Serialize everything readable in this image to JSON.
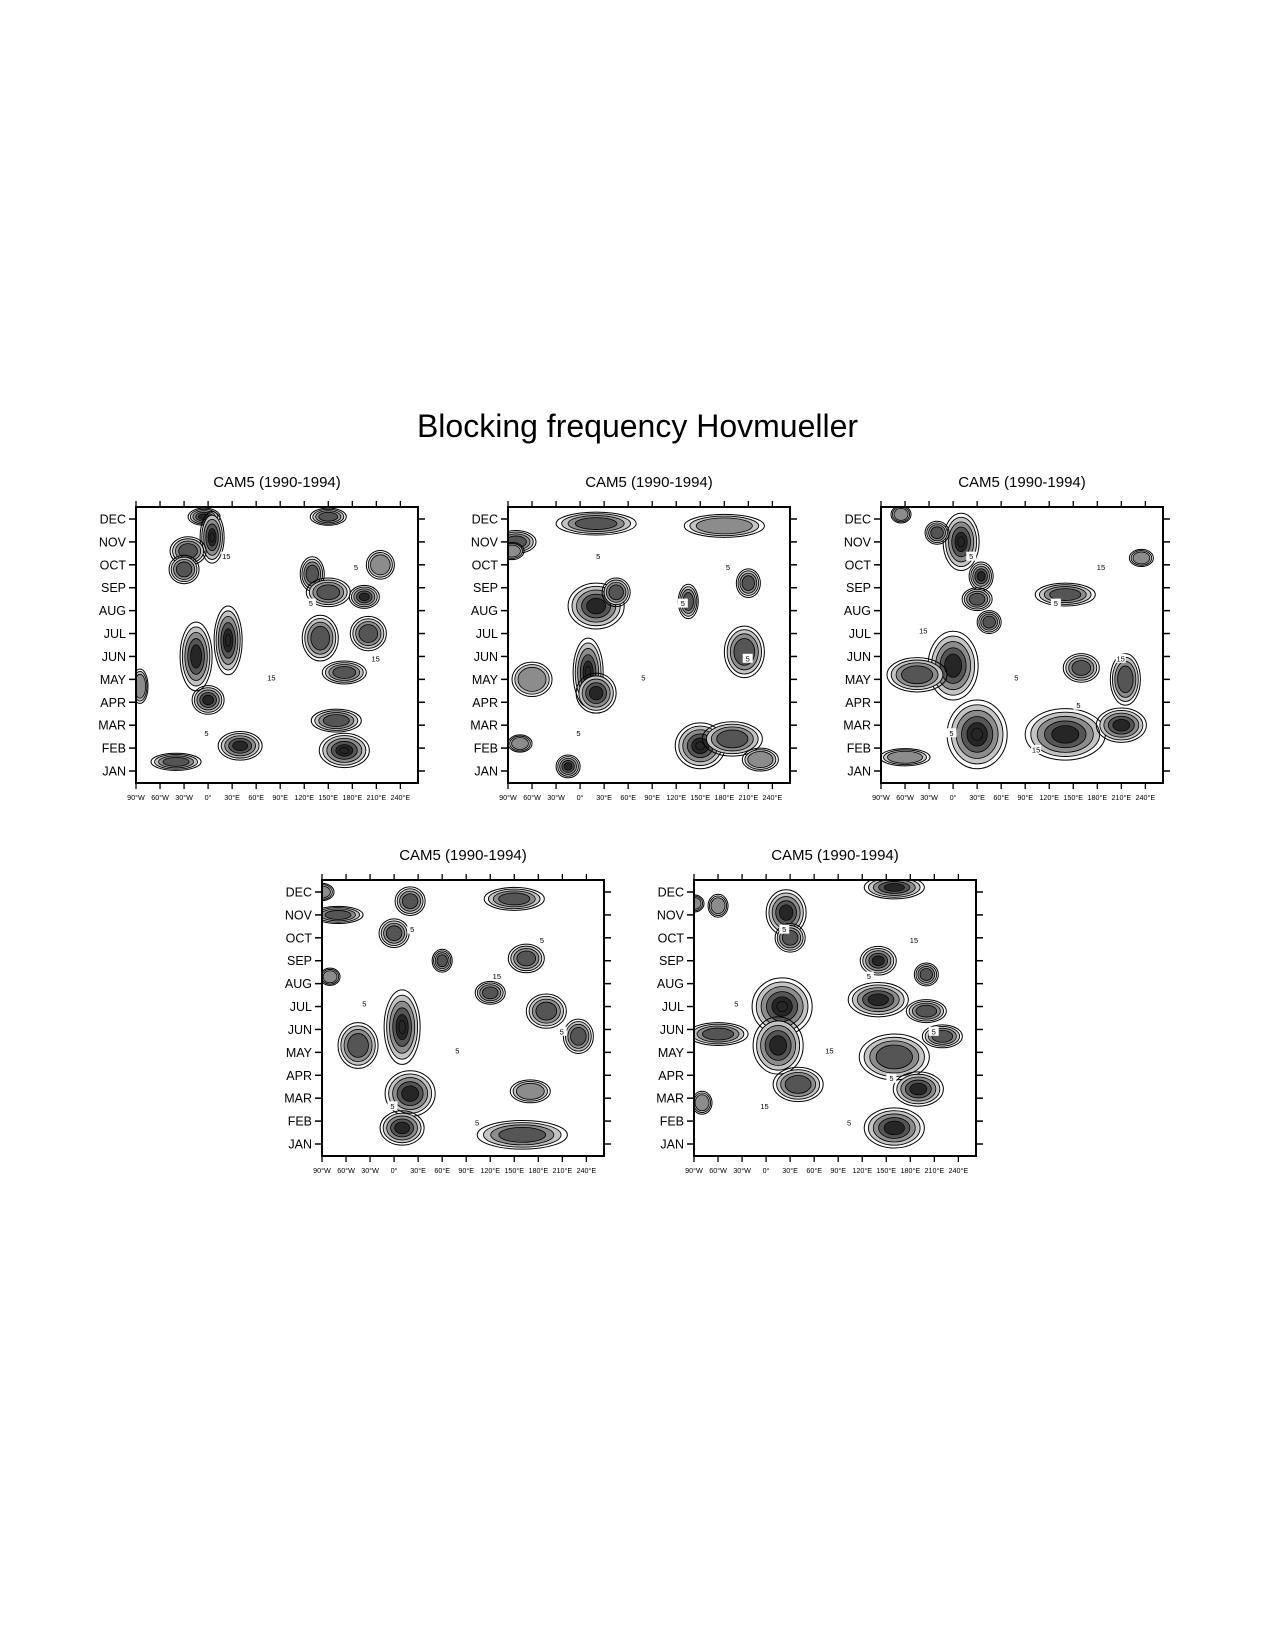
{
  "title": "Blocking frequency Hovmueller",
  "chart_data": [
    {
      "type": "heatmap",
      "title": "CAM5 (1990-1994)",
      "x_tick_labels": [
        "90°W",
        "60°W",
        "30°W",
        "0°",
        "30°E",
        "60°E",
        "90°E",
        "120°E",
        "150°E",
        "180°E",
        "210°E",
        "240°E"
      ],
      "y_tick_labels": [
        "JAN",
        "FEB",
        "MAR",
        "APR",
        "MAY",
        "JUN",
        "JUL",
        "AUG",
        "SEP",
        "OCT",
        "NOV",
        "DEC"
      ],
      "contour_labels": [
        "15",
        "5",
        "15",
        "5",
        "5",
        "15"
      ],
      "blobs": [
        {
          "x": -5,
          "y": 11.1,
          "rx": 16,
          "ry": 0.3,
          "v": 18
        },
        {
          "x": 5,
          "y": 10.2,
          "rx": 12,
          "ry": 0.9,
          "v": 22
        },
        {
          "x": -25,
          "y": 9.6,
          "rx": 18,
          "ry": 0.5,
          "v": 15
        },
        {
          "x": -30,
          "y": 8.8,
          "rx": 15,
          "ry": 0.5,
          "v": 14
        },
        {
          "x": 130,
          "y": 8.6,
          "rx": 12,
          "ry": 0.6,
          "v": 15
        },
        {
          "x": 195,
          "y": 7.6,
          "rx": 15,
          "ry": 0.4,
          "v": 18
        },
        {
          "x": 150,
          "y": 7.8,
          "rx": 22,
          "ry": 0.5,
          "v": 15
        },
        {
          "x": 25,
          "y": 5.7,
          "rx": 14,
          "ry": 1.2,
          "v": 22
        },
        {
          "x": -15,
          "y": 5.0,
          "rx": 16,
          "ry": 1.2,
          "v": 18
        },
        {
          "x": 140,
          "y": 5.8,
          "rx": 18,
          "ry": 0.8,
          "v": 16
        },
        {
          "x": 200,
          "y": 6.0,
          "rx": 18,
          "ry": 0.6,
          "v": 16
        },
        {
          "x": 170,
          "y": 4.3,
          "rx": 22,
          "ry": 0.4,
          "v": 14
        },
        {
          "x": 0,
          "y": 3.1,
          "rx": 16,
          "ry": 0.5,
          "v": 20
        },
        {
          "x": 160,
          "y": 2.2,
          "rx": 25,
          "ry": 0.4,
          "v": 14
        },
        {
          "x": 40,
          "y": 1.1,
          "rx": 22,
          "ry": 0.5,
          "v": 18
        },
        {
          "x": 170,
          "y": 0.9,
          "rx": 25,
          "ry": 0.6,
          "v": 22
        },
        {
          "x": -40,
          "y": 0.4,
          "rx": 25,
          "ry": 0.3,
          "v": 14
        },
        {
          "x": 150,
          "y": 11.1,
          "rx": 18,
          "ry": 0.3,
          "v": 14
        },
        {
          "x": 215,
          "y": 9.0,
          "rx": 14,
          "ry": 0.5,
          "v": 13
        },
        {
          "x": -85,
          "y": 3.7,
          "rx": 8,
          "ry": 0.6,
          "v": 12
        }
      ]
    },
    {
      "type": "heatmap",
      "title": "CAM5 (1990-1994)",
      "x_tick_labels": [
        "90°W",
        "60°W",
        "30°W",
        "0°",
        "30°E",
        "60°E",
        "90°E",
        "120°E",
        "150°E",
        "180°E",
        "210°E",
        "240°E"
      ],
      "y_tick_labels": [
        "JAN",
        "FEB",
        "MAR",
        "APR",
        "MAY",
        "JUN",
        "JUL",
        "AUG",
        "SEP",
        "OCT",
        "NOV",
        "DEC"
      ],
      "contour_labels": [
        "5",
        "5",
        "5",
        "5",
        "5",
        "5"
      ],
      "blobs": [
        {
          "x": 20,
          "y": 10.8,
          "rx": 40,
          "ry": 0.4,
          "v": 16
        },
        {
          "x": -80,
          "y": 10.0,
          "rx": 20,
          "ry": 0.4,
          "v": 14
        },
        {
          "x": -85,
          "y": 9.6,
          "rx": 12,
          "ry": 0.3,
          "v": 12
        },
        {
          "x": 180,
          "y": 10.7,
          "rx": 40,
          "ry": 0.4,
          "v": 12
        },
        {
          "x": 20,
          "y": 7.2,
          "rx": 28,
          "ry": 0.8,
          "v": 20
        },
        {
          "x": 45,
          "y": 7.8,
          "rx": 14,
          "ry": 0.5,
          "v": 14
        },
        {
          "x": 135,
          "y": 7.4,
          "rx": 10,
          "ry": 0.6,
          "v": 16
        },
        {
          "x": 210,
          "y": 8.2,
          "rx": 12,
          "ry": 0.5,
          "v": 14
        },
        {
          "x": 10,
          "y": 4.3,
          "rx": 15,
          "ry": 1.2,
          "v": 22
        },
        {
          "x": 20,
          "y": 3.4,
          "rx": 20,
          "ry": 0.7,
          "v": 20
        },
        {
          "x": -60,
          "y": 4.0,
          "rx": 20,
          "ry": 0.6,
          "v": 12
        },
        {
          "x": 205,
          "y": 5.2,
          "rx": 20,
          "ry": 0.9,
          "v": 14
        },
        {
          "x": 150,
          "y": 1.1,
          "rx": 25,
          "ry": 0.8,
          "v": 22
        },
        {
          "x": 190,
          "y": 1.4,
          "rx": 30,
          "ry": 0.6,
          "v": 16
        },
        {
          "x": -15,
          "y": 0.2,
          "rx": 12,
          "ry": 0.4,
          "v": 18
        },
        {
          "x": -75,
          "y": 1.2,
          "rx": 12,
          "ry": 0.3,
          "v": 12
        },
        {
          "x": 225,
          "y": 0.5,
          "rx": 18,
          "ry": 0.4,
          "v": 13
        }
      ]
    },
    {
      "type": "heatmap",
      "title": "CAM5 (1990-1994)",
      "x_tick_labels": [
        "90°W",
        "60°W",
        "30°W",
        "0°",
        "30°E",
        "60°E",
        "90°E",
        "120°E",
        "150°E",
        "180°E",
        "210°E",
        "240°E"
      ],
      "y_tick_labels": [
        "JAN",
        "FEB",
        "MAR",
        "APR",
        "MAY",
        "JUN",
        "JUL",
        "AUG",
        "SEP",
        "OCT",
        "NOV",
        "DEC"
      ],
      "contour_labels": [
        "5",
        "5",
        "5",
        "15",
        "5",
        "15",
        "15",
        "15",
        "5"
      ],
      "blobs": [
        {
          "x": 10,
          "y": 10.0,
          "rx": 18,
          "ry": 1.0,
          "v": 22
        },
        {
          "x": -20,
          "y": 10.4,
          "rx": 12,
          "ry": 0.4,
          "v": 14
        },
        {
          "x": -65,
          "y": 11.2,
          "rx": 10,
          "ry": 0.3,
          "v": 12
        },
        {
          "x": 35,
          "y": 8.5,
          "rx": 12,
          "ry": 0.5,
          "v": 20
        },
        {
          "x": 30,
          "y": 7.5,
          "rx": 15,
          "ry": 0.4,
          "v": 14
        },
        {
          "x": 45,
          "y": 6.5,
          "rx": 12,
          "ry": 0.4,
          "v": 16
        },
        {
          "x": 140,
          "y": 7.7,
          "rx": 30,
          "ry": 0.4,
          "v": 15
        },
        {
          "x": 0,
          "y": 4.6,
          "rx": 25,
          "ry": 1.2,
          "v": 18
        },
        {
          "x": -45,
          "y": 4.2,
          "rx": 30,
          "ry": 0.6,
          "v": 14
        },
        {
          "x": 160,
          "y": 4.5,
          "rx": 18,
          "ry": 0.5,
          "v": 15
        },
        {
          "x": 215,
          "y": 4.0,
          "rx": 15,
          "ry": 0.9,
          "v": 16
        },
        {
          "x": 30,
          "y": 1.6,
          "rx": 30,
          "ry": 1.2,
          "v": 22
        },
        {
          "x": 140,
          "y": 1.6,
          "rx": 40,
          "ry": 0.9,
          "v": 20
        },
        {
          "x": 210,
          "y": 2.0,
          "rx": 25,
          "ry": 0.6,
          "v": 18
        },
        {
          "x": -60,
          "y": 0.6,
          "rx": 25,
          "ry": 0.3,
          "v": 13
        },
        {
          "x": 235,
          "y": 9.3,
          "rx": 12,
          "ry": 0.3,
          "v": 12
        }
      ]
    },
    {
      "type": "heatmap",
      "title": "CAM5 (1990-1994)",
      "x_tick_labels": [
        "90°W",
        "60°W",
        "30°W",
        "0°",
        "30°E",
        "60°E",
        "90°E",
        "120°E",
        "150°E",
        "180°E",
        "210°E",
        "240°E"
      ],
      "y_tick_labels": [
        "JAN",
        "FEB",
        "MAR",
        "APR",
        "MAY",
        "JUN",
        "JUL",
        "AUG",
        "SEP",
        "OCT",
        "NOV",
        "DEC"
      ],
      "contour_labels": [
        "5",
        "15",
        "5",
        "5",
        "5",
        "5",
        "5",
        "5"
      ],
      "blobs": [
        {
          "x": -70,
          "y": 10.0,
          "rx": 25,
          "ry": 0.3,
          "v": 16
        },
        {
          "x": 20,
          "y": 10.6,
          "rx": 15,
          "ry": 0.5,
          "v": 16
        },
        {
          "x": 150,
          "y": 10.7,
          "rx": 30,
          "ry": 0.4,
          "v": 14
        },
        {
          "x": -90,
          "y": 11.0,
          "rx": 12,
          "ry": 0.3,
          "v": 12
        },
        {
          "x": 0,
          "y": 9.2,
          "rx": 15,
          "ry": 0.5,
          "v": 14
        },
        {
          "x": 60,
          "y": 8.0,
          "rx": 10,
          "ry": 0.4,
          "v": 14
        },
        {
          "x": 165,
          "y": 8.1,
          "rx": 18,
          "ry": 0.5,
          "v": 14
        },
        {
          "x": 120,
          "y": 6.6,
          "rx": 15,
          "ry": 0.4,
          "v": 15
        },
        {
          "x": 190,
          "y": 5.8,
          "rx": 20,
          "ry": 0.6,
          "v": 14
        },
        {
          "x": 10,
          "y": 5.1,
          "rx": 18,
          "ry": 1.3,
          "v": 22
        },
        {
          "x": -45,
          "y": 4.3,
          "rx": 20,
          "ry": 0.8,
          "v": 15
        },
        {
          "x": 230,
          "y": 4.7,
          "rx": 15,
          "ry": 0.6,
          "v": 16
        },
        {
          "x": 20,
          "y": 2.2,
          "rx": 25,
          "ry": 0.8,
          "v": 20
        },
        {
          "x": 10,
          "y": 0.7,
          "rx": 22,
          "ry": 0.6,
          "v": 18
        },
        {
          "x": 160,
          "y": 0.4,
          "rx": 45,
          "ry": 0.5,
          "v": 16
        },
        {
          "x": 170,
          "y": 2.3,
          "rx": 20,
          "ry": 0.4,
          "v": 13
        },
        {
          "x": -80,
          "y": 7.3,
          "rx": 10,
          "ry": 0.3,
          "v": 11
        }
      ]
    },
    {
      "type": "heatmap",
      "title": "CAM5 (1990-1994)",
      "x_tick_labels": [
        "90°W",
        "60°W",
        "30°W",
        "0°",
        "30°E",
        "60°E",
        "90°E",
        "120°E",
        "150°E",
        "180°E",
        "210°E",
        "240°E"
      ],
      "y_tick_labels": [
        "JAN",
        "FEB",
        "MAR",
        "APR",
        "MAY",
        "JUN",
        "JUL",
        "AUG",
        "SEP",
        "OCT",
        "NOV",
        "DEC"
      ],
      "contour_labels": [
        "5",
        "5",
        "15",
        "15",
        "15",
        "5",
        "5",
        "5",
        "5"
      ],
      "blobs": [
        {
          "x": 160,
          "y": 11.2,
          "rx": 30,
          "ry": 0.4,
          "v": 20
        },
        {
          "x": 25,
          "y": 10.1,
          "rx": 20,
          "ry": 0.8,
          "v": 18
        },
        {
          "x": -60,
          "y": 10.4,
          "rx": 10,
          "ry": 0.4,
          "v": 12
        },
        {
          "x": 30,
          "y": 9.0,
          "rx": 15,
          "ry": 0.5,
          "v": 16
        },
        {
          "x": 140,
          "y": 8.0,
          "rx": 18,
          "ry": 0.5,
          "v": 18
        },
        {
          "x": 200,
          "y": 7.4,
          "rx": 12,
          "ry": 0.4,
          "v": 14
        },
        {
          "x": 20,
          "y": 6.0,
          "rx": 30,
          "ry": 1.0,
          "v": 22
        },
        {
          "x": 140,
          "y": 6.3,
          "rx": 30,
          "ry": 0.6,
          "v": 18
        },
        {
          "x": 200,
          "y": 5.8,
          "rx": 20,
          "ry": 0.4,
          "v": 14
        },
        {
          "x": 15,
          "y": 4.3,
          "rx": 25,
          "ry": 1.0,
          "v": 20
        },
        {
          "x": -60,
          "y": 4.8,
          "rx": 30,
          "ry": 0.4,
          "v": 15
        },
        {
          "x": 160,
          "y": 3.8,
          "rx": 35,
          "ry": 0.8,
          "v": 15
        },
        {
          "x": 220,
          "y": 4.7,
          "rx": 20,
          "ry": 0.4,
          "v": 14
        },
        {
          "x": 190,
          "y": 2.4,
          "rx": 25,
          "ry": 0.6,
          "v": 18
        },
        {
          "x": 40,
          "y": 2.6,
          "rx": 25,
          "ry": 0.6,
          "v": 14
        },
        {
          "x": 160,
          "y": 0.7,
          "rx": 30,
          "ry": 0.7,
          "v": 20
        },
        {
          "x": -80,
          "y": 1.8,
          "rx": 10,
          "ry": 0.4,
          "v": 13
        },
        {
          "x": -90,
          "y": 10.5,
          "rx": 10,
          "ry": 0.3,
          "v": 12
        }
      ]
    }
  ],
  "colors": {
    "shade_1": "#c4c4c4",
    "shade_2": "#8c8c8c",
    "shade_3": "#555555",
    "shade_4": "#262626",
    "contour": "#000000",
    "frame": "#000000"
  }
}
